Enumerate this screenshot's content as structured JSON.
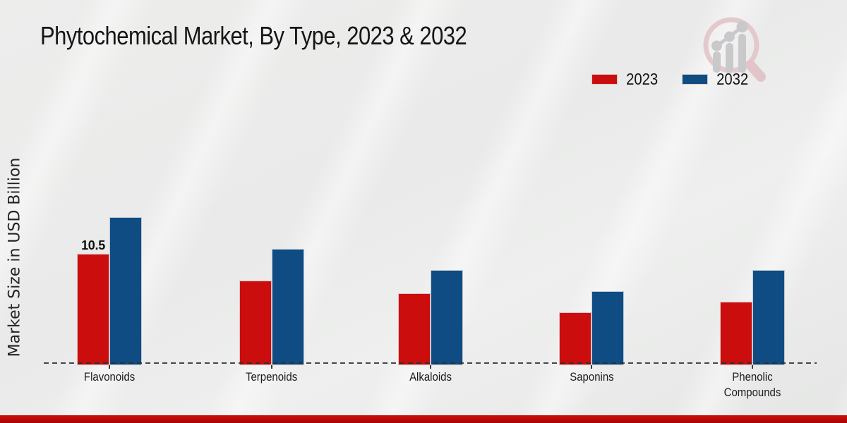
{
  "title": "Phytochemical Market, By Type, 2023 & 2032",
  "ylabel": "Market Size in USD Billion",
  "footer_accent_color": "#c40808",
  "logo_icon": "magnifier-bar-chart-watermark",
  "chart_data": {
    "type": "bar",
    "title": "Phytochemical Market, By Type, 2023 & 2032",
    "ylabel": "Market Size in USD Billion",
    "xlabel": "",
    "categories": [
      "Flavonoids",
      "Terpenoids",
      "Alkaloids",
      "Saponins",
      "Phenolic Compounds"
    ],
    "series": [
      {
        "name": "2023",
        "color": "#cc0d0d",
        "values": [
          10.5,
          8.0,
          6.8,
          5.0,
          6.0
        ]
      },
      {
        "name": "2032",
        "color": "#0e4c83",
        "values": [
          14.0,
          11.0,
          9.0,
          7.0,
          9.0
        ]
      }
    ],
    "annotations": [
      {
        "category": "Flavonoids",
        "series": "2023",
        "text": "10.5"
      }
    ],
    "ylim": [
      0,
      16
    ],
    "grid": false,
    "y_tick_labels_visible": false,
    "baseline_style": "dashed",
    "legend_position": "top-right"
  }
}
